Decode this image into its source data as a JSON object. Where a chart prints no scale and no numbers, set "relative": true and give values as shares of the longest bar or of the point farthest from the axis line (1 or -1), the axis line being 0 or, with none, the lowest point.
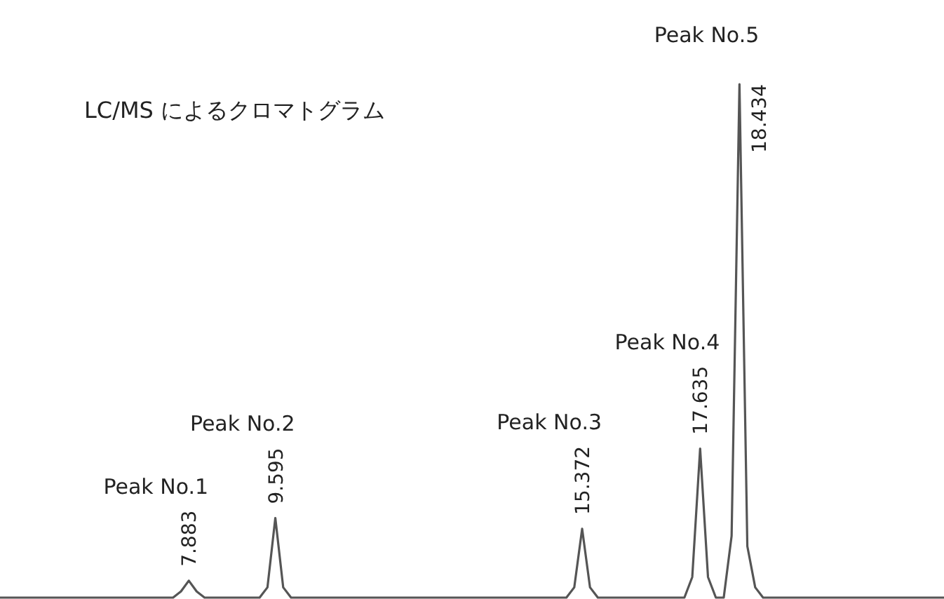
{
  "chart_data": {
    "type": "line",
    "title": "LC/MS によるクロマトグラム",
    "relative": true,
    "color": "#555555",
    "categories": [
      null,
      null,
      null,
      null,
      null,
      null,
      null,
      null,
      null,
      null,
      null,
      null,
      null,
      null,
      null,
      null,
      null,
      null,
      null,
      null,
      null,
      null,
      null,
      null,
      null,
      null,
      null,
      null,
      null,
      null,
      null,
      null,
      null,
      null,
      null,
      null,
      null,
      null,
      null,
      null,
      null,
      null,
      null,
      null,
      null,
      null,
      null,
      null,
      null,
      null,
      null,
      null,
      null,
      null,
      null,
      null,
      null,
      null,
      null,
      null,
      null,
      null,
      null,
      null,
      null,
      null,
      null,
      null,
      null,
      null,
      null,
      null,
      null,
      null,
      null,
      null,
      null,
      null,
      null,
      null,
      null,
      null,
      null,
      null,
      null,
      null,
      null,
      null,
      null,
      null,
      null,
      null,
      null,
      null,
      null,
      null,
      null,
      null,
      null,
      null,
      null,
      null,
      null,
      null,
      null,
      null,
      null,
      null,
      null,
      null,
      null,
      null,
      null,
      null,
      null,
      null,
      null,
      null,
      null,
      null,
      null
    ],
    "values": [
      0,
      0,
      0,
      0,
      0,
      0,
      0,
      0,
      0,
      0,
      0,
      0,
      0,
      0,
      0,
      0,
      0,
      0,
      0,
      0,
      0,
      0,
      0,
      0.012,
      0.033,
      0.012,
      0,
      0,
      0,
      0,
      0,
      0,
      0,
      0,
      0.02,
      0.155,
      0.02,
      0,
      0,
      0,
      0,
      0,
      0,
      0,
      0,
      0,
      0,
      0,
      0,
      0,
      0,
      0,
      0,
      0,
      0,
      0,
      0,
      0,
      0,
      0,
      0,
      0,
      0,
      0,
      0,
      0,
      0,
      0,
      0,
      0,
      0,
      0,
      0,
      0.02,
      0.134,
      0.02,
      0,
      0,
      0,
      0,
      0,
      0,
      0,
      0,
      0,
      0,
      0,
      0,
      0.04,
      0.29,
      0.04,
      0,
      0,
      0.12,
      1,
      0.1,
      0.02,
      0,
      0,
      0,
      0,
      0,
      0,
      0,
      0,
      0,
      0,
      0,
      0,
      0,
      0,
      0,
      0,
      0,
      0,
      0,
      0,
      0,
      0,
      0,
      0
    ],
    "annotations": [
      "Peak No.1",
      "Peak No.2",
      "Peak No.3",
      "Peak No.4",
      "Peak No.5",
      "7.883",
      "9.595",
      "15.372",
      "17.635",
      "18.434"
    ]
  }
}
